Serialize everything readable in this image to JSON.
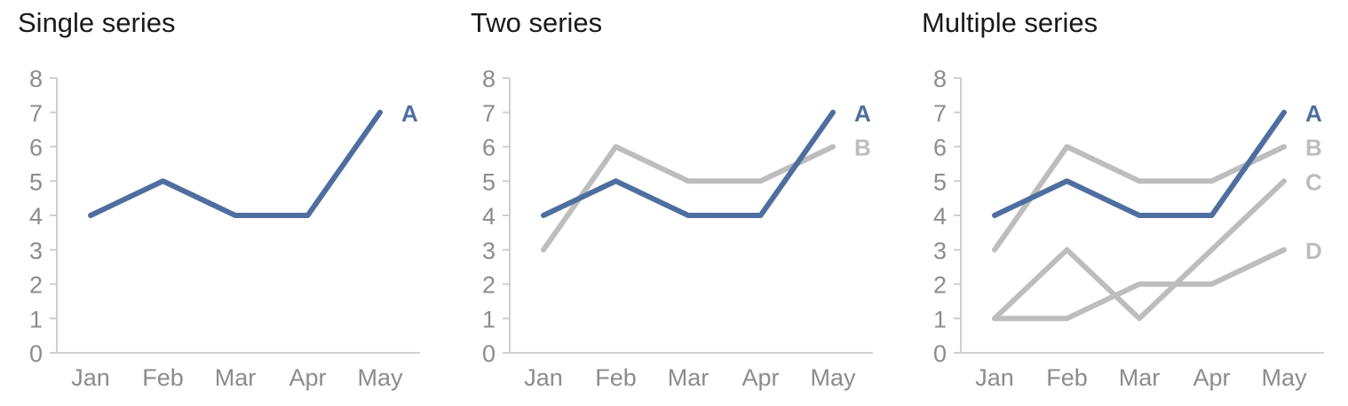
{
  "colors": {
    "highlight": "#4f6e9f",
    "muted": "#bdbdbd",
    "axis": "#cfcfcf",
    "tick_text": "#8c8c8c"
  },
  "chart_data": [
    {
      "type": "line",
      "title": "Single series",
      "categories": [
        "Jan",
        "Feb",
        "Mar",
        "Apr",
        "May"
      ],
      "ylim": [
        0,
        8
      ],
      "yticks": [
        "0",
        "1",
        "2",
        "3",
        "4",
        "5",
        "6",
        "7",
        "8"
      ],
      "grid": false,
      "series": [
        {
          "name": "A",
          "values": [
            4,
            5,
            4,
            4,
            7
          ],
          "color": "#4f6e9f"
        }
      ]
    },
    {
      "type": "line",
      "title": "Two series",
      "categories": [
        "Jan",
        "Feb",
        "Mar",
        "Apr",
        "May"
      ],
      "ylim": [
        0,
        8
      ],
      "yticks": [
        "0",
        "1",
        "2",
        "3",
        "4",
        "5",
        "6",
        "7",
        "8"
      ],
      "grid": false,
      "series": [
        {
          "name": "B",
          "values": [
            3,
            6,
            5,
            5,
            6
          ],
          "color": "#bdbdbd"
        },
        {
          "name": "A",
          "values": [
            4,
            5,
            4,
            4,
            7
          ],
          "color": "#4f6e9f"
        }
      ]
    },
    {
      "type": "line",
      "title": "Multiple series",
      "categories": [
        "Jan",
        "Feb",
        "Mar",
        "Apr",
        "May"
      ],
      "ylim": [
        0,
        8
      ],
      "yticks": [
        "0",
        "1",
        "2",
        "3",
        "4",
        "5",
        "6",
        "7",
        "8"
      ],
      "grid": false,
      "series": [
        {
          "name": "D",
          "values": [
            1,
            1,
            2,
            2,
            3
          ],
          "color": "#bdbdbd"
        },
        {
          "name": "C",
          "values": [
            1,
            3,
            1,
            3,
            5
          ],
          "color": "#bdbdbd"
        },
        {
          "name": "B",
          "values": [
            3,
            6,
            5,
            5,
            6
          ],
          "color": "#bdbdbd"
        },
        {
          "name": "A",
          "values": [
            4,
            5,
            4,
            4,
            7
          ],
          "color": "#4f6e9f"
        }
      ]
    }
  ]
}
